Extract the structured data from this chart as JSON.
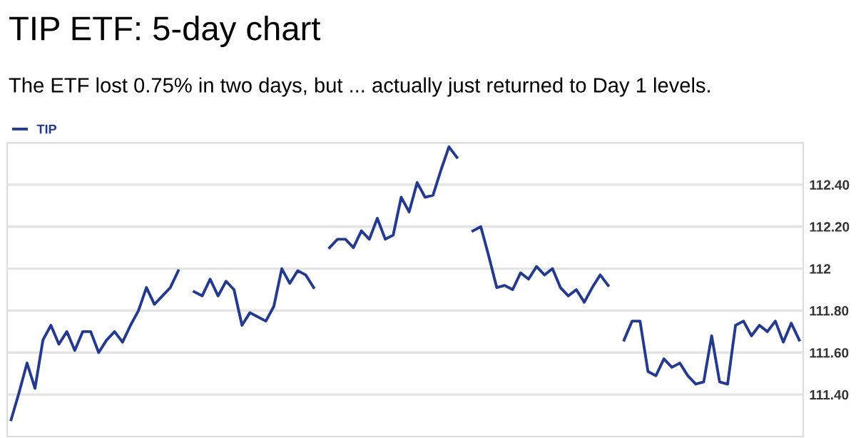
{
  "chart_data": {
    "type": "line",
    "title": "TIP ETF: 5-day chart",
    "subtitle": "The ETF lost 0.75% in two days, but ... actually just returned to Day 1 levels.",
    "categories": [
      null,
      null,
      null,
      null,
      null,
      null,
      null,
      null,
      null,
      null,
      null,
      null,
      null,
      null,
      null,
      null,
      null,
      null,
      null,
      null,
      null,
      null,
      null,
      null,
      null,
      null,
      null,
      null,
      null,
      null,
      null,
      null,
      null,
      null,
      null,
      null,
      null,
      null,
      null,
      null,
      null,
      null,
      null,
      null,
      null,
      null,
      null,
      null,
      null,
      null,
      null,
      null,
      null,
      null,
      null,
      null,
      null,
      null,
      null,
      null,
      null,
      null,
      null,
      null,
      null,
      null,
      null,
      null,
      null,
      null,
      null,
      null,
      null,
      null,
      null,
      null,
      null,
      null,
      null,
      null,
      null,
      null,
      null,
      null,
      null,
      null,
      null,
      null,
      null,
      null,
      null,
      null,
      null,
      null,
      null,
      null,
      null,
      null,
      null,
      null
    ],
    "series": [
      {
        "name": "TIP",
        "color": "#233a8e",
        "values": [
          111.28,
          111.41,
          111.55,
          111.43,
          111.66,
          111.73,
          111.64,
          111.7,
          111.61,
          111.7,
          111.7,
          111.6,
          111.66,
          111.7,
          111.65,
          111.73,
          111.8,
          111.91,
          111.83,
          111.87,
          111.91,
          111.99,
          null,
          111.89,
          111.87,
          111.95,
          111.87,
          111.94,
          111.9,
          111.73,
          111.79,
          111.77,
          111.75,
          111.82,
          112.0,
          111.93,
          111.99,
          111.97,
          111.91,
          null,
          112.1,
          112.14,
          112.14,
          112.1,
          112.18,
          112.14,
          112.24,
          112.14,
          112.16,
          112.34,
          112.27,
          112.41,
          112.34,
          112.35,
          112.47,
          112.58,
          112.53,
          null,
          112.18,
          112.2,
          112.06,
          111.91,
          111.92,
          111.9,
          111.98,
          111.95,
          112.01,
          111.97,
          112.0,
          111.91,
          111.87,
          111.9,
          111.84,
          111.91,
          111.97,
          111.92,
          null,
          111.66,
          111.75,
          111.75,
          111.51,
          111.49,
          111.57,
          111.53,
          111.55,
          111.49,
          111.45,
          111.46,
          111.68,
          111.46,
          111.45,
          111.73,
          111.75,
          111.68,
          111.73,
          111.7,
          111.75,
          111.65,
          111.74,
          111.66
        ]
      }
    ],
    "ylim": [
      111.2,
      112.6
    ],
    "yticks": [
      {
        "value": 111.4,
        "label": "111.40"
      },
      {
        "value": 111.6,
        "label": "111.60"
      },
      {
        "value": 111.8,
        "label": "111.80"
      },
      {
        "value": 112,
        "label": "112"
      },
      {
        "value": 112.2,
        "label": "112.20"
      },
      {
        "value": 112.4,
        "label": "112.40"
      },
      {
        "value": 112.6,
        "label": null
      }
    ],
    "tick_labels": "y",
    "grid": "y",
    "legend": "top left",
    "marker": "none",
    "line_style": "solid"
  }
}
